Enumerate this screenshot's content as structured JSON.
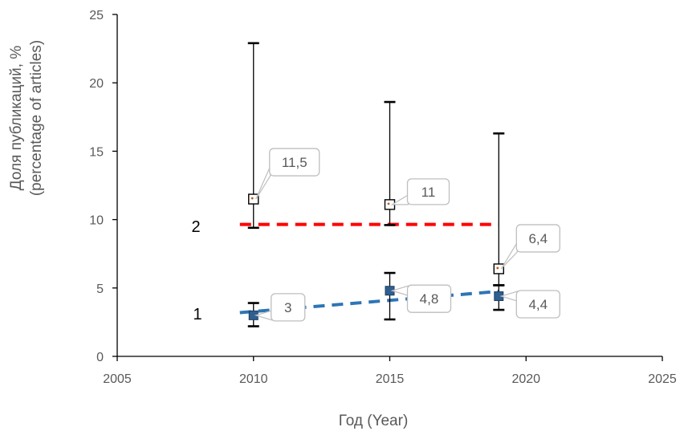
{
  "chart_data": {
    "type": "scatter",
    "xlabel": "Год (Year)",
    "ylabel_line1": "Доля публикаций, %",
    "ylabel_line2": "(percentage of articles)",
    "xlim": [
      2005,
      2025
    ],
    "ylim": [
      0,
      25
    ],
    "x_ticks": [
      "2005",
      "2010",
      "2015",
      "2020",
      "2025"
    ],
    "y_ticks": [
      "0",
      "5",
      "10",
      "15",
      "20",
      "25"
    ],
    "grid": false,
    "series": [
      {
        "marker": "filled-square",
        "color": "#2e75b6",
        "trend_color": "#2e75b6",
        "trend_number": "1",
        "trend": [
          [
            2009.5,
            3.2
          ],
          [
            2019,
            4.75
          ]
        ],
        "points": [
          {
            "x": 2010,
            "y": 3,
            "label": "3",
            "err_low": 2.2,
            "err_high": 3.9
          },
          {
            "x": 2015,
            "y": 4.8,
            "label": "4,8",
            "err_low": 2.7,
            "err_high": 6.1
          },
          {
            "x": 2019,
            "y": 4.4,
            "label": "4,4",
            "err_low": 3.4,
            "err_high": 5.2
          }
        ]
      },
      {
        "marker": "open-square",
        "color": "#000000",
        "trend_color": "#ff0000",
        "trend_number": "2",
        "trend": [
          [
            2009.5,
            9.65
          ],
          [
            2019,
            9.65
          ]
        ],
        "points": [
          {
            "x": 2010,
            "y": 11.5,
            "label": "11,5",
            "err_low": 9.4,
            "err_high": 22.9
          },
          {
            "x": 2015,
            "y": 11.1,
            "label": "11",
            "err_low": 9.6,
            "err_high": 18.6
          },
          {
            "x": 2019,
            "y": 6.4,
            "label": "6,4",
            "err_low": 5.2,
            "err_high": 16.3
          }
        ]
      }
    ]
  }
}
